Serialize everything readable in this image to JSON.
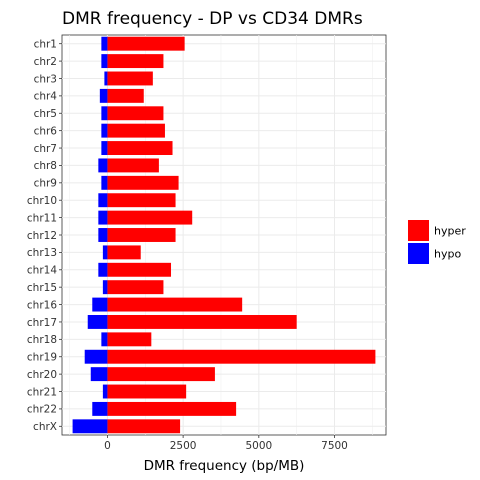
{
  "chart_data": {
    "type": "bar",
    "orientation": "horizontal",
    "stacked": "diverging",
    "title": "DMR frequency - DP vs CD34 DMRs",
    "xlabel": "DMR frequency (bp/MB)",
    "ylabel": "",
    "categories": [
      "chr1",
      "chr2",
      "chr3",
      "chr4",
      "chr5",
      "chr6",
      "chr7",
      "chr8",
      "chr9",
      "chr10",
      "chr11",
      "chr12",
      "chr13",
      "chr14",
      "chr15",
      "chr16",
      "chr17",
      "chr18",
      "chr19",
      "chr20",
      "chr21",
      "chr22",
      "chrX"
    ],
    "series": [
      {
        "name": "hyper",
        "color": "#ff0000",
        "values": [
          2550,
          1850,
          1500,
          1200,
          1850,
          1900,
          2150,
          1700,
          2350,
          2250,
          2800,
          2250,
          1100,
          2100,
          1850,
          4450,
          6250,
          1450,
          8850,
          3550,
          2600,
          4250,
          2400
        ]
      },
      {
        "name": "hypo",
        "color": "#0000ff",
        "values": [
          -200,
          -200,
          -100,
          -250,
          -200,
          -200,
          -200,
          -300,
          -200,
          -300,
          -300,
          -300,
          -150,
          -300,
          -150,
          -500,
          -650,
          -200,
          -750,
          -550,
          -150,
          -500,
          -1150
        ]
      }
    ],
    "xticks": [
      0,
      2500,
      5000,
      7500
    ],
    "xtick_labels": [
      "0",
      "2500",
      "5000",
      "7500"
    ],
    "xlim": [
      -1500,
      9200
    ],
    "grid": true,
    "legend": {
      "position": "right",
      "entries": [
        "hyper",
        "hypo"
      ]
    }
  }
}
